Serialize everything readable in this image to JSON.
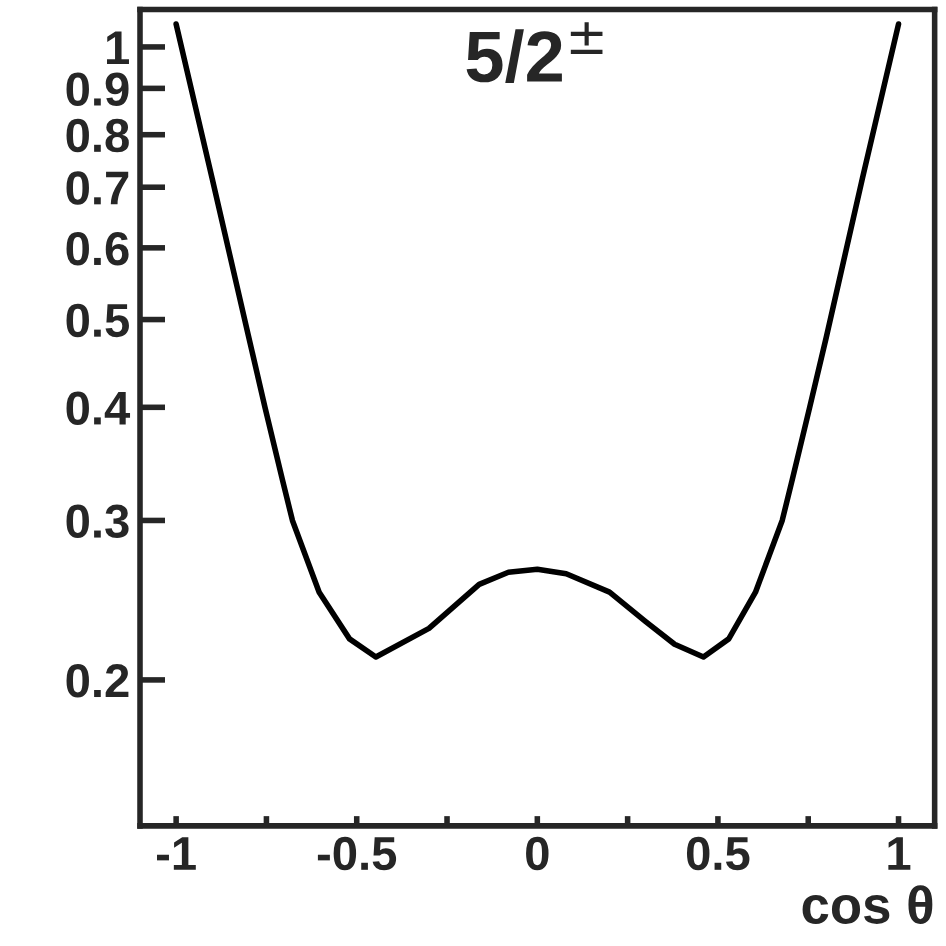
{
  "chart_data": {
    "type": "line",
    "title": "5/2$^{±}$",
    "xlabel": "cos θ",
    "x": [
      -1,
      -0.9,
      -0.8,
      -0.754,
      -0.706,
      -0.678,
      -0.604,
      -0.52,
      -0.447,
      -0.3,
      -0.161,
      -0.08,
      0,
      0.08,
      0.2,
      0.3,
      0.38,
      0.46,
      0.53,
      0.604,
      0.678,
      0.706,
      0.754,
      0.8,
      0.9,
      1
    ],
    "series": [
      {
        "color": "#000000",
        "values": [
          1.06,
          0.715,
          0.48,
          0.4,
          0.333,
          0.3,
          0.25,
          0.222,
          0.212,
          0.228,
          0.255,
          0.263,
          0.265,
          0.262,
          0.25,
          0.232,
          0.219,
          0.212,
          0.222,
          0.25,
          0.3,
          0.333,
          0.4,
          0.478,
          0.716,
          1.06
        ]
      }
    ],
    "log": "y",
    "xlim": [
      -1.1,
      1.1
    ],
    "ylim": [
      0.138,
      1.1
    ],
    "xticks": [
      -1,
      {
        "value": -0.75,
        "label": null
      },
      -0.5,
      {
        "value": -0.25,
        "label": null
      },
      0,
      {
        "value": 0.25,
        "label": null
      },
      0.5,
      {
        "value": 0.75,
        "label": null
      },
      1
    ],
    "yticks": [
      0.2,
      0.3,
      0.4,
      0.5,
      0.6,
      0.7,
      0.8,
      0.9,
      1
    ],
    "grid": false,
    "legend": false,
    "marker": "none",
    "line_style": "solid"
  }
}
